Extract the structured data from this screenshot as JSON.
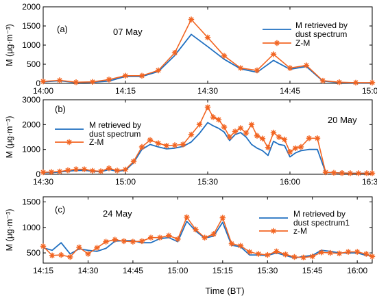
{
  "colors": {
    "blue": "#1f6fc0",
    "orange": "#f26522"
  },
  "marker_icon": "asterisk-marker-icon",
  "x_axis_title": "Time (BT)",
  "chart_data": [
    {
      "type": "line",
      "panel_label": "(a)",
      "date_label": "07 May",
      "ylabel": "M (μg·m⁻³)",
      "ylim": [
        0,
        2000
      ],
      "yticks": [
        0,
        500,
        1000,
        1500,
        2000
      ],
      "xlim": [
        0,
        60
      ],
      "xticks": [
        0,
        15,
        30,
        45,
        60
      ],
      "xtick_labels": [
        "14:00",
        "14:15",
        "14:30",
        "14:45",
        "15:00"
      ],
      "legend_position": "top-right",
      "series": [
        {
          "name": "M retrieved by\ndust  spectrum",
          "marker": false,
          "x": [
            0,
            3,
            6,
            9,
            12,
            15,
            18,
            21,
            24,
            27,
            30,
            33,
            36,
            39,
            42,
            45,
            48,
            51,
            54,
            57,
            60
          ],
          "y": [
            40,
            70,
            20,
            30,
            60,
            180,
            180,
            310,
            730,
            1280,
            960,
            630,
            380,
            290,
            600,
            370,
            440,
            60,
            20,
            10,
            10
          ]
        },
        {
          "name": "Z-M",
          "marker": true,
          "x": [
            0,
            3,
            6,
            9,
            12,
            15,
            18,
            21,
            24,
            27,
            30,
            33,
            36,
            39,
            42,
            45,
            48,
            51,
            54,
            57,
            60
          ],
          "y": [
            50,
            80,
            30,
            40,
            100,
            200,
            200,
            340,
            800,
            1670,
            1200,
            720,
            400,
            340,
            760,
            400,
            470,
            70,
            30,
            20,
            20
          ]
        }
      ]
    },
    {
      "type": "line",
      "panel_label": "(b)",
      "date_label": "20 May",
      "ylabel": "M (μg·m⁻³)",
      "ylim": [
        0,
        3000
      ],
      "yticks": [
        0,
        1000,
        2000,
        3000
      ],
      "xlim": [
        0,
        120
      ],
      "xticks": [
        0,
        30,
        60,
        90,
        120
      ],
      "xtick_labels": [
        "14:30",
        "15:00",
        "15:30",
        "16:00",
        "16:30"
      ],
      "legend_position": "top-left",
      "series": [
        {
          "name": "M retrieved by\ndust  spectrum",
          "marker": false,
          "x": [
            0,
            3,
            6,
            9,
            12,
            15,
            18,
            21,
            24,
            27,
            30,
            33,
            36,
            39,
            42,
            45,
            48,
            51,
            54,
            57,
            60,
            62,
            64,
            66,
            68,
            70,
            72,
            74,
            76,
            78,
            80,
            82,
            84,
            86,
            88,
            90,
            92,
            94,
            97,
            100,
            103,
            106,
            109,
            112,
            115,
            118,
            120
          ],
          "y": [
            60,
            70,
            90,
            130,
            150,
            160,
            120,
            100,
            190,
            120,
            160,
            470,
            1000,
            1200,
            1100,
            1020,
            1050,
            1120,
            1300,
            1650,
            2080,
            1950,
            1850,
            1700,
            1360,
            1600,
            1680,
            1500,
            1200,
            1050,
            950,
            760,
            1330,
            1200,
            1160,
            700,
            860,
            950,
            1000,
            1000,
            80,
            60,
            50,
            40,
            40,
            40,
            40
          ]
        },
        {
          "name": "Z-M",
          "marker": true,
          "x": [
            0,
            3,
            6,
            9,
            12,
            15,
            18,
            21,
            24,
            27,
            30,
            33,
            36,
            39,
            42,
            45,
            48,
            51,
            54,
            57,
            60,
            62,
            64,
            66,
            68,
            70,
            72,
            74,
            76,
            78,
            80,
            82,
            84,
            86,
            88,
            90,
            92,
            94,
            97,
            100,
            103,
            106,
            109,
            112,
            115,
            118,
            120
          ],
          "y": [
            80,
            90,
            110,
            160,
            200,
            200,
            140,
            120,
            240,
            150,
            190,
            520,
            1100,
            1380,
            1250,
            1150,
            1170,
            1200,
            1600,
            2000,
            2700,
            2300,
            2200,
            1900,
            1500,
            1720,
            1860,
            1660,
            2000,
            1550,
            1440,
            1080,
            1680,
            1500,
            1400,
            900,
            1050,
            1100,
            1450,
            1450,
            80,
            60,
            50,
            40,
            40,
            40,
            40
          ]
        }
      ]
    },
    {
      "type": "line",
      "panel_label": "(c)",
      "date_label": "24 May",
      "ylabel": "M (μg·m⁻³)",
      "ylim": [
        300,
        1600
      ],
      "yticks": [
        500,
        1000,
        1500
      ],
      "xlim": [
        0,
        110
      ],
      "xticks": [
        0,
        15,
        30,
        45,
        60,
        75,
        90,
        105
      ],
      "xtick_labels": [
        "14:15",
        "14:30",
        "14:45",
        "15:00",
        "15:15",
        "15:30",
        "15:45",
        "16:00"
      ],
      "legend_position": "top-right",
      "series": [
        {
          "name": "M retrieved by\ndust  spectrum1",
          "marker": false,
          "x": [
            0,
            3,
            6,
            9,
            12,
            15,
            18,
            21,
            24,
            27,
            30,
            33,
            36,
            39,
            42,
            45,
            48,
            51,
            54,
            57,
            60,
            63,
            66,
            69,
            72,
            75,
            78,
            81,
            84,
            87,
            90,
            93,
            96,
            99,
            102,
            105,
            108,
            110
          ],
          "y": [
            600,
            550,
            700,
            480,
            580,
            550,
            530,
            590,
            730,
            740,
            740,
            700,
            700,
            780,
            800,
            720,
            1120,
            930,
            790,
            830,
            1100,
            650,
            620,
            460,
            460,
            450,
            500,
            450,
            400,
            430,
            450,
            550,
            530,
            500,
            500,
            500,
            450,
            450
          ]
        },
        {
          "name": "z-M",
          "marker": true,
          "x": [
            0,
            3,
            6,
            9,
            12,
            15,
            18,
            21,
            24,
            27,
            30,
            33,
            36,
            39,
            42,
            45,
            48,
            51,
            54,
            57,
            60,
            63,
            66,
            69,
            72,
            75,
            78,
            81,
            84,
            87,
            90,
            93,
            96,
            99,
            102,
            105,
            108,
            110
          ],
          "y": [
            630,
            450,
            460,
            420,
            610,
            480,
            600,
            720,
            760,
            730,
            720,
            730,
            800,
            800,
            840,
            770,
            1200,
            960,
            800,
            870,
            1190,
            680,
            640,
            520,
            480,
            460,
            530,
            470,
            420,
            410,
            430,
            510,
            500,
            490,
            520,
            520,
            480,
            430
          ]
        }
      ]
    }
  ]
}
